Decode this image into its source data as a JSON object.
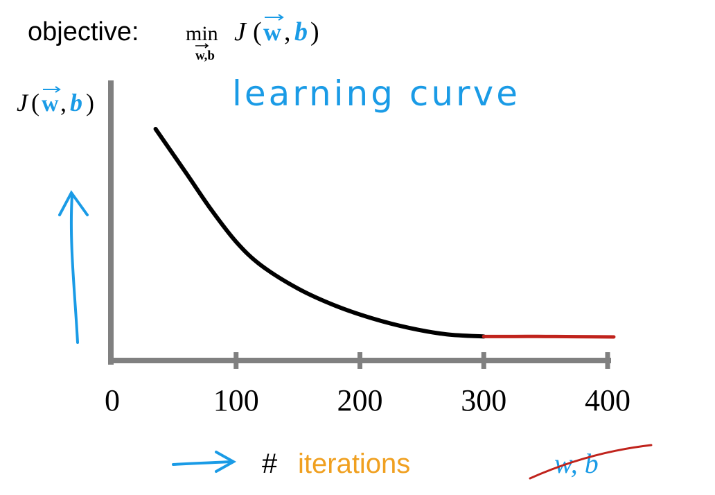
{
  "header": {
    "objective_label": "objective:",
    "min_label": "min",
    "min_subscript": "w,b",
    "function_J": "J",
    "paren_open": "(",
    "param_w": "w",
    "comma": ",",
    "param_b": "b",
    "paren_close": ")"
  },
  "annotations": {
    "learning_curve": "learning curve",
    "hash": "#",
    "iterations": "iterations",
    "crossed_wb": "w, b"
  },
  "colors": {
    "blue": "#1a9be6",
    "orange": "#f0a020",
    "red": "#c0231c",
    "black": "#000000",
    "axis": "#808080"
  },
  "chart_data": {
    "type": "line",
    "title": "learning curve",
    "xlabel": "# iterations",
    "ylabel": "J(w, b)",
    "xlim": [
      0,
      400
    ],
    "xticks": [
      0,
      100,
      200,
      300,
      400
    ],
    "grid": false,
    "series": [
      {
        "color": "#000000",
        "x": [
          35,
          60,
          80,
          100,
          120,
          150,
          180,
          210,
          240,
          270,
          300
        ],
        "y": [
          100,
          79,
          62,
          47,
          36,
          25,
          17,
          11,
          6.5,
          3.5,
          2.5
        ]
      },
      {
        "color": "#c0231c",
        "x": [
          300,
          325,
          350,
          375,
          405
        ],
        "y": [
          2.5,
          2.5,
          2.5,
          2.4,
          2.3
        ]
      }
    ]
  }
}
